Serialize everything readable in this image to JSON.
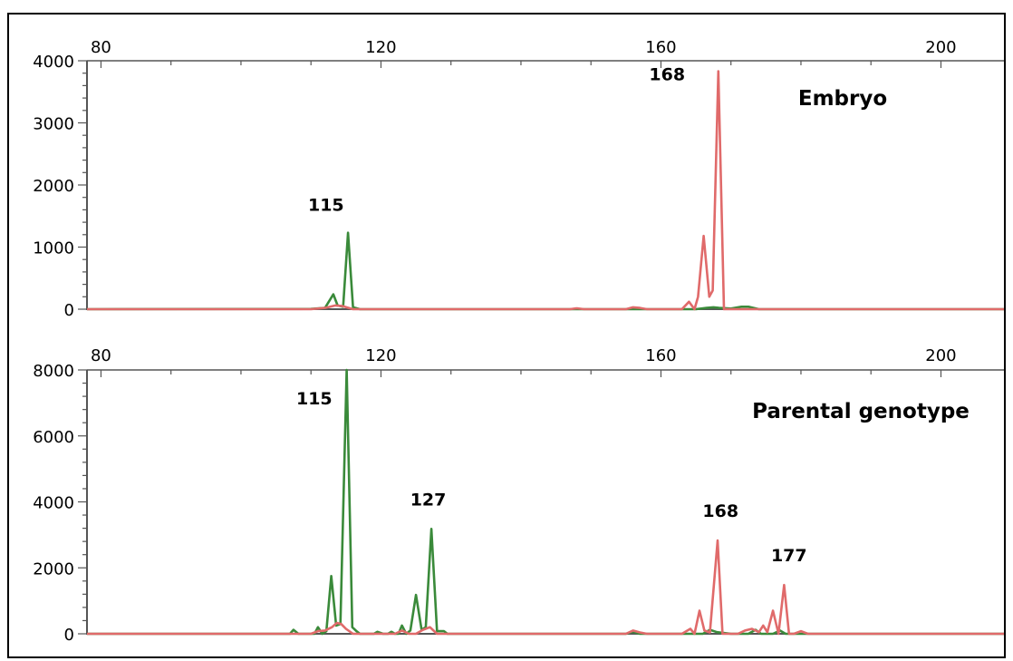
{
  "chart_data": [
    {
      "type": "line",
      "title": "Embryo",
      "xlabel": "",
      "ylabel": "",
      "xlim": [
        78,
        209
      ],
      "ylim": [
        0,
        4000
      ],
      "xticks": [
        80,
        120,
        160,
        200
      ],
      "yticks": [
        0,
        1000,
        2000,
        3000,
        4000
      ],
      "grid": false,
      "colors": {
        "green": "#3a8a3a",
        "red": "#e06a6a"
      },
      "series": [
        {
          "color": "green",
          "points": [
            [
              78,
              0
            ],
            [
              110,
              5
            ],
            [
              112,
              20
            ],
            [
              113.2,
              240
            ],
            [
              113.8,
              60
            ],
            [
              114.6,
              40
            ],
            [
              115.3,
              1230
            ],
            [
              116,
              30
            ],
            [
              117,
              0
            ],
            [
              140,
              0
            ],
            [
              154,
              0
            ],
            [
              165,
              0
            ],
            [
              166.5,
              20
            ],
            [
              167.5,
              30
            ],
            [
              168.3,
              20
            ],
            [
              170,
              10
            ],
            [
              171.5,
              40
            ],
            [
              172.5,
              40
            ],
            [
              174,
              0
            ],
            [
              209,
              0
            ]
          ]
        },
        {
          "color": "red",
          "points": [
            [
              78,
              0
            ],
            [
              110,
              0
            ],
            [
              112,
              20
            ],
            [
              113.5,
              60
            ],
            [
              114.5,
              50
            ],
            [
              116,
              0
            ],
            [
              130,
              0
            ],
            [
              147,
              0
            ],
            [
              148,
              15
            ],
            [
              149,
              0
            ],
            [
              155,
              0
            ],
            [
              156,
              30
            ],
            [
              157,
              20
            ],
            [
              158,
              0
            ],
            [
              163,
              0
            ],
            [
              164,
              120
            ],
            [
              164.8,
              0
            ],
            [
              165.3,
              200
            ],
            [
              166.1,
              1180
            ],
            [
              166.9,
              200
            ],
            [
              167.4,
              300
            ],
            [
              168.2,
              3830
            ],
            [
              169,
              0
            ],
            [
              171,
              0
            ],
            [
              173,
              0
            ],
            [
              209,
              0
            ]
          ]
        }
      ],
      "annotations": [
        {
          "x": 115,
          "y": 1230,
          "text": "115"
        },
        {
          "x": 168,
          "y": 3830,
          "text": "168"
        }
      ]
    },
    {
      "type": "line",
      "title": "Parental genotype",
      "xlabel": "",
      "ylabel": "",
      "xlim": [
        78,
        209
      ],
      "ylim": [
        0,
        8000
      ],
      "xticks": [
        80,
        120,
        160,
        200
      ],
      "yticks": [
        0,
        2000,
        4000,
        6000,
        8000
      ],
      "grid": false,
      "colors": {
        "green": "#3a8a3a",
        "red": "#e06a6a"
      },
      "series": [
        {
          "color": "green",
          "points": [
            [
              78,
              0
            ],
            [
              107,
              0
            ],
            [
              107.5,
              120
            ],
            [
              108.2,
              0
            ],
            [
              110.5,
              0
            ],
            [
              111,
              200
            ],
            [
              111.6,
              0
            ],
            [
              112.2,
              80
            ],
            [
              112.9,
              1750
            ],
            [
              113.6,
              250
            ],
            [
              114.2,
              300
            ],
            [
              115.1,
              8000
            ],
            [
              115.9,
              200
            ],
            [
              116.5,
              80
            ],
            [
              117,
              0
            ],
            [
              119,
              0
            ],
            [
              119.5,
              60
            ],
            [
              120.3,
              0
            ],
            [
              121,
              0
            ],
            [
              121.5,
              60
            ],
            [
              122,
              0
            ],
            [
              122.5,
              0
            ],
            [
              123,
              250
            ],
            [
              123.6,
              0
            ],
            [
              124.2,
              100
            ],
            [
              125,
              1180
            ],
            [
              125.8,
              120
            ],
            [
              126.4,
              200
            ],
            [
              127.2,
              3180
            ],
            [
              128,
              80
            ],
            [
              129,
              80
            ],
            [
              129.5,
              0
            ],
            [
              155,
              0
            ],
            [
              156,
              60
            ],
            [
              157,
              0
            ],
            [
              166,
              0
            ],
            [
              167,
              120
            ],
            [
              168,
              50
            ],
            [
              170,
              0
            ],
            [
              172.5,
              0
            ],
            [
              173.5,
              120
            ],
            [
              174.3,
              0
            ],
            [
              176,
              0
            ],
            [
              177,
              100
            ],
            [
              177.8,
              0
            ],
            [
              209,
              0
            ]
          ]
        },
        {
          "color": "red",
          "points": [
            [
              78,
              0
            ],
            [
              110,
              0
            ],
            [
              111,
              80
            ],
            [
              112,
              100
            ],
            [
              113,
              200
            ],
            [
              113.7,
              330
            ],
            [
              114.3,
              300
            ],
            [
              115,
              150
            ],
            [
              116,
              0
            ],
            [
              122,
              0
            ],
            [
              123,
              100
            ],
            [
              124,
              0
            ],
            [
              125,
              0
            ],
            [
              126,
              120
            ],
            [
              127,
              200
            ],
            [
              128,
              0
            ],
            [
              150,
              0
            ],
            [
              155,
              0
            ],
            [
              156,
              100
            ],
            [
              157,
              40
            ],
            [
              158,
              0
            ],
            [
              163,
              0
            ],
            [
              164.2,
              150
            ],
            [
              164.8,
              0
            ],
            [
              165.5,
              700
            ],
            [
              166.2,
              100
            ],
            [
              167,
              40
            ],
            [
              168.1,
              2830
            ],
            [
              168.8,
              0
            ],
            [
              171,
              0
            ],
            [
              172,
              100
            ],
            [
              173,
              150
            ],
            [
              174,
              50
            ],
            [
              174.6,
              250
            ],
            [
              175.2,
              50
            ],
            [
              176,
              700
            ],
            [
              176.8,
              0
            ],
            [
              177.6,
              1480
            ],
            [
              178.3,
              0
            ],
            [
              179,
              0
            ],
            [
              180,
              80
            ],
            [
              181,
              0
            ],
            [
              209,
              0
            ]
          ]
        }
      ],
      "annotations": [
        {
          "x": 115,
          "y": 8000,
          "text": "115"
        },
        {
          "x": 127,
          "y": 3180,
          "text": "127"
        },
        {
          "x": 168,
          "y": 2830,
          "text": "168"
        },
        {
          "x": 177,
          "y": 1480,
          "text": "177"
        }
      ]
    }
  ]
}
